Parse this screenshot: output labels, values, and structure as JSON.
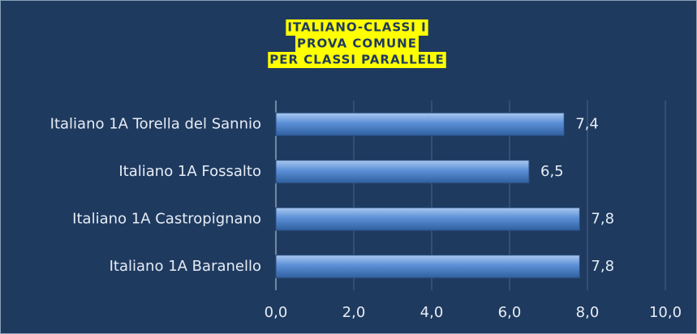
{
  "chart_data": {
    "type": "barh",
    "title": [
      "ITALIANO-CLASSI I",
      "PROVA COMUNE",
      "PER CLASSI PARALLELE"
    ],
    "categories": [
      "Italiano 1A Torella del Sannio",
      "Italiano 1A Fossalto",
      "Italiano 1A Castropignano",
      "Italiano 1A Baranello"
    ],
    "values": [
      7.4,
      6.5,
      7.8,
      7.8
    ],
    "value_labels": [
      "7,4",
      "6,5",
      "7,8",
      "7,8"
    ],
    "color": "#5b8fd6",
    "xlim": [
      0,
      10
    ],
    "xticks": [
      {
        "value": 0,
        "label": "0,0"
      },
      {
        "value": 2,
        "label": "2,0"
      },
      {
        "value": 4,
        "label": "4,0"
      },
      {
        "value": 6,
        "label": "6,0"
      },
      {
        "value": 8,
        "label": "8,0"
      },
      {
        "value": 10,
        "label": "10,0"
      }
    ],
    "grid": true
  }
}
